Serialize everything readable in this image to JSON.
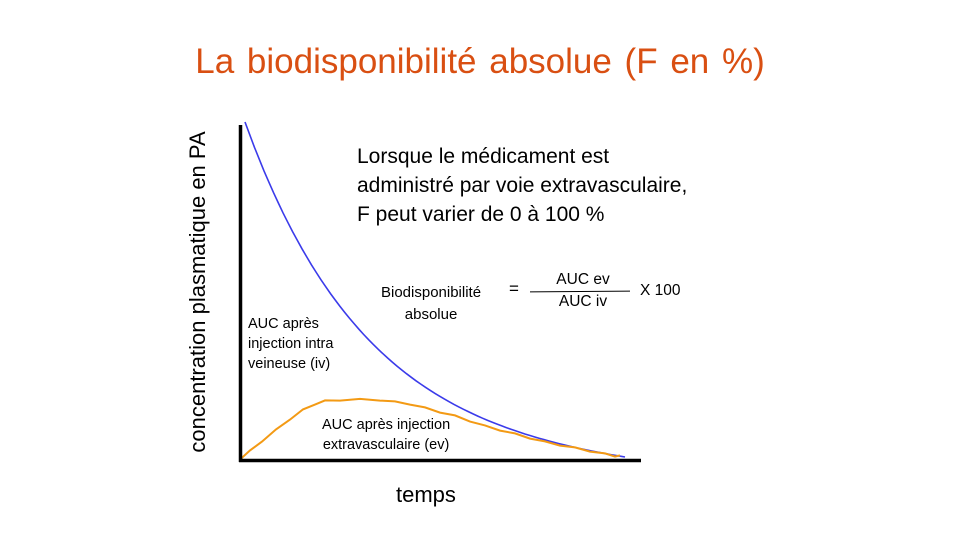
{
  "title": "La biodisponibilité absolue (F en %)",
  "colors": {
    "title": "#d94f12",
    "iv_curve": "#3b3bea",
    "ev_curve": "#f39a14",
    "axes": "#000000"
  },
  "axes": {
    "y_label": "concentration plasmatique en PA",
    "x_label": "temps"
  },
  "statement": {
    "lines": [
      "Lorsque le médicament est",
      "administré par voie extravasculaire,",
      "F peut varier de 0 à 100 %"
    ]
  },
  "curves": {
    "iv": {
      "label_lines": [
        "AUC après",
        "injection intra",
        "veineuse (iv)"
      ]
    },
    "ev": {
      "label_lines": [
        "AUC après injection",
        "extravasculaire  (ev)"
      ]
    }
  },
  "formula": {
    "lhs_lines": [
      "Biodisponibilité",
      "absolue"
    ],
    "equals": "=",
    "numerator": "AUC ev",
    "denominator": "AUC iv",
    "multiplier": "X 100"
  }
}
